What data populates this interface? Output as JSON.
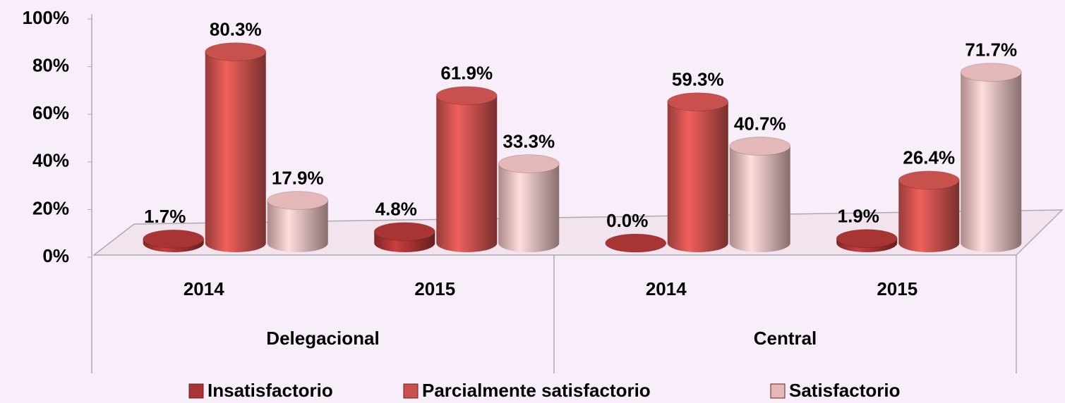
{
  "chart_data": {
    "type": "bar",
    "categories": [
      "2014",
      "2015",
      "2014",
      "2015"
    ],
    "group_labels": [
      "Delegacional",
      "Central"
    ],
    "series": [
      {
        "name": "Insatisfactorio",
        "color": "#a83434",
        "values": [
          1.7,
          4.8,
          0.0,
          1.9
        ],
        "value_labels": [
          "1.7%",
          "4.8%",
          "0.0%",
          "1.9%"
        ]
      },
      {
        "name": "Parcialmente satisfactorio",
        "color": "#c8504d",
        "values": [
          80.3,
          61.9,
          59.3,
          26.4
        ],
        "value_labels": [
          "80.3%",
          "61.9%",
          "59.3%",
          "26.4%"
        ]
      },
      {
        "name": "Satisfactorio",
        "color": "#e4b8b8",
        "values": [
          17.9,
          33.3,
          40.7,
          71.7
        ],
        "value_labels": [
          "17.9%",
          "33.3%",
          "40.7%",
          "71.7%"
        ]
      }
    ],
    "ylim": [
      0,
      100
    ],
    "yticks": [
      {
        "value": 0,
        "label": "0%"
      },
      {
        "value": 20,
        "label": "20%"
      },
      {
        "value": 40,
        "label": "40%"
      },
      {
        "value": 60,
        "label": "60%"
      },
      {
        "value": 80,
        "label": "80%"
      },
      {
        "value": 100,
        "label": "100%"
      }
    ],
    "legend": "bottom"
  }
}
